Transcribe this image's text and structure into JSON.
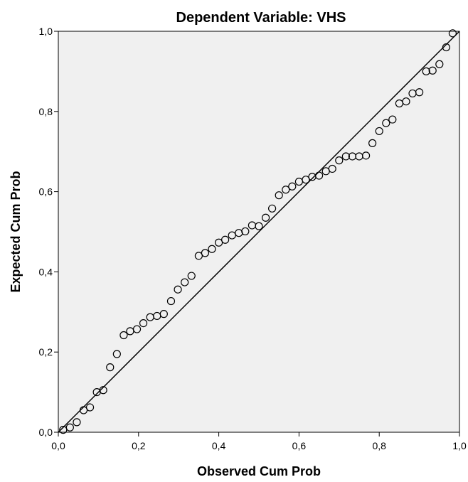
{
  "chart_data": {
    "type": "scatter",
    "title": "Dependent Variable: VHS",
    "xlabel": "Observed Cum Prob",
    "ylabel": "Expected Cum Prob",
    "xlim": [
      0,
      1
    ],
    "ylim": [
      0,
      1
    ],
    "x_ticks": [
      "0,0",
      "0,2",
      "0,4",
      "0,6",
      "0,8",
      "1,0"
    ],
    "y_ticks": [
      "0,0",
      "0,2",
      "0,4",
      "0,6",
      "0,8",
      "1,0"
    ],
    "reference_line": [
      [
        0,
        0
      ],
      [
        1,
        1
      ]
    ],
    "grid": false,
    "colors": {
      "plot_background": "#f0f0f0",
      "marker_stroke": "#000000",
      "line": "#000000"
    },
    "series": [
      {
        "x": [
          0.012,
          0.029,
          0.046,
          0.063,
          0.079,
          0.096,
          0.112,
          0.129,
          0.146,
          0.163,
          0.179,
          0.196,
          0.212,
          0.229,
          0.246,
          0.263,
          0.281,
          0.298,
          0.315,
          0.332,
          0.35,
          0.366,
          0.383,
          0.4,
          0.416,
          0.433,
          0.45,
          0.466,
          0.483,
          0.5,
          0.517,
          0.533,
          0.55,
          0.567,
          0.583,
          0.6,
          0.617,
          0.633,
          0.65,
          0.667,
          0.683,
          0.7,
          0.717,
          0.733,
          0.75,
          0.767,
          0.783,
          0.8,
          0.817,
          0.833,
          0.85,
          0.867,
          0.883,
          0.9,
          0.917,
          0.933,
          0.95,
          0.967,
          0.983
        ],
        "y": [
          0.006,
          0.012,
          0.025,
          0.055,
          0.062,
          0.1,
          0.105,
          0.162,
          0.195,
          0.242,
          0.252,
          0.257,
          0.272,
          0.287,
          0.29,
          0.295,
          0.327,
          0.356,
          0.374,
          0.39,
          0.44,
          0.447,
          0.457,
          0.473,
          0.48,
          0.491,
          0.497,
          0.501,
          0.516,
          0.514,
          0.535,
          0.558,
          0.591,
          0.605,
          0.613,
          0.625,
          0.63,
          0.637,
          0.64,
          0.651,
          0.657,
          0.678,
          0.688,
          0.688,
          0.688,
          0.69,
          0.721,
          0.751,
          0.771,
          0.78,
          0.82,
          0.825,
          0.845,
          0.848,
          0.9,
          0.902,
          0.918,
          0.96,
          0.995
        ]
      }
    ]
  }
}
